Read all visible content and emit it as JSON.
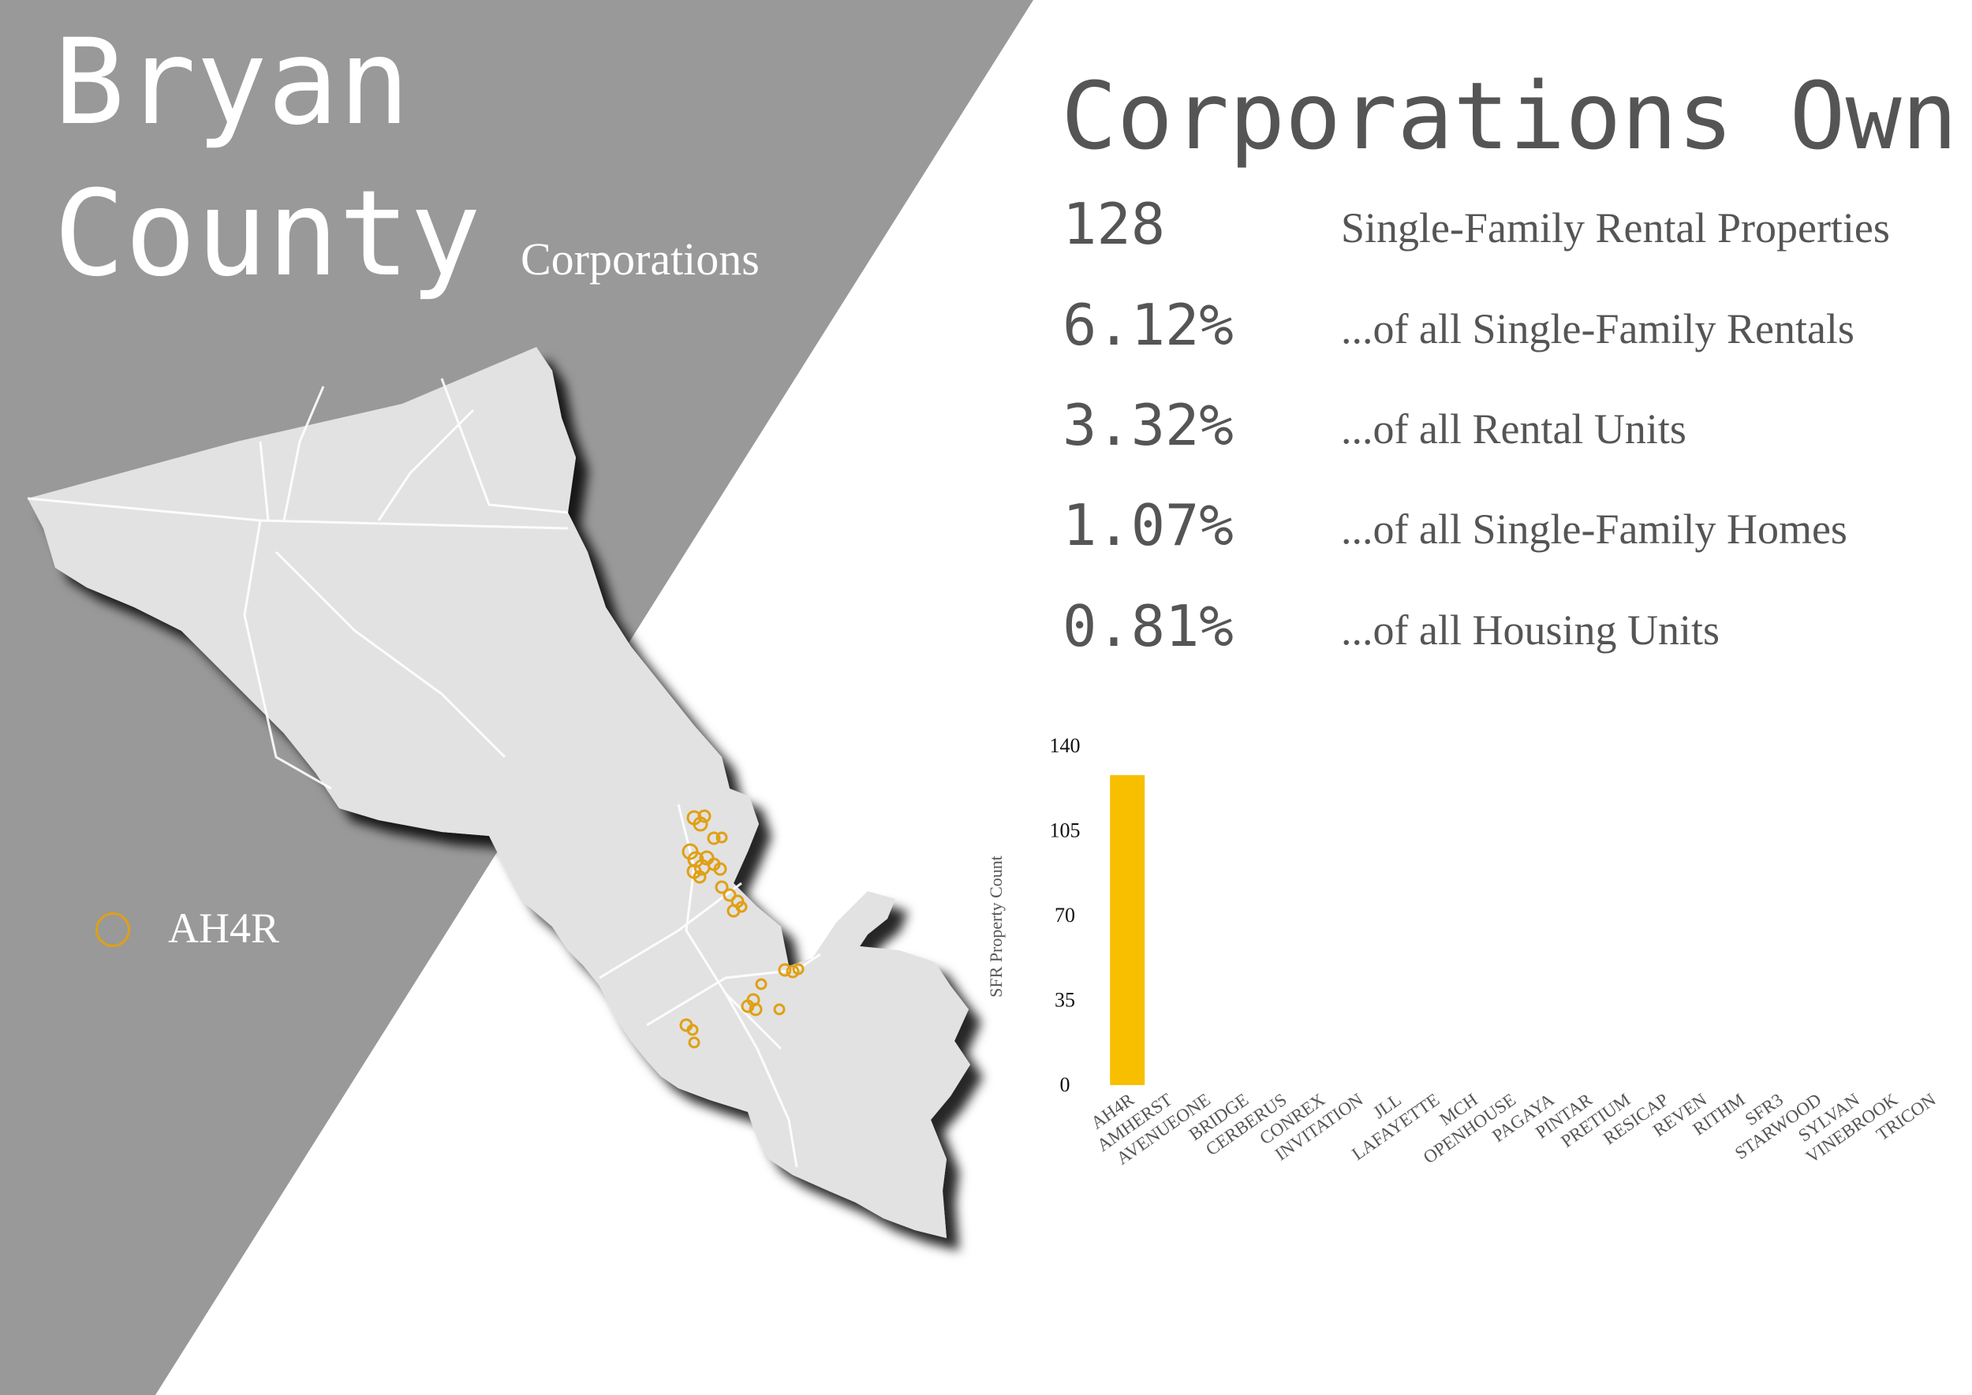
{
  "header": {
    "title_line1": "Bryan",
    "title_line2": "County",
    "subtitle": "Corporations"
  },
  "legend": {
    "label": "AH4R",
    "color": "#e0a015"
  },
  "colors": {
    "panel": "#999999",
    "map_fill": "#e2e2e2",
    "bar": "#f8bf00",
    "text": "#555555"
  },
  "stats": {
    "heading": "Corporations Own:",
    "items": [
      {
        "value": "128",
        "label": "Single-Family Rental Properties"
      },
      {
        "value": "6.12%",
        "label": "...of all Single-Family Rentals"
      },
      {
        "value": "3.32%",
        "label": "...of all Rental Units"
      },
      {
        "value": "1.07%",
        "label": "...of all Single-Family Homes"
      },
      {
        "value": "0.81%",
        "label": "...of all Housing Units"
      }
    ]
  },
  "chart_data": {
    "type": "bar",
    "title": "",
    "xlabel": "",
    "ylabel": "SFR Property Count",
    "ylim": [
      0,
      140
    ],
    "yticks": [
      "0",
      "35",
      "70",
      "105",
      "140"
    ],
    "categories": [
      "AH4R",
      "AMHERST",
      "AVENUEONE",
      "BRIDGE",
      "CERBERUS",
      "CONREX",
      "INVITATION",
      "JLL",
      "LAFAYETTE",
      "MCH",
      "OPENHOUSE",
      "PAGAYA",
      "PINTAR",
      "PRETIUM",
      "RESICAP",
      "REVEN",
      "RITHM",
      "SFR3",
      "STARWOOD",
      "SYLVAN",
      "VINEBROOK",
      "TRICON"
    ],
    "values": [
      128,
      0,
      0,
      0,
      0,
      0,
      0,
      0,
      0,
      0,
      0,
      0,
      0,
      0,
      0,
      0,
      0,
      0,
      0,
      0,
      0,
      0
    ],
    "grid": false,
    "legend": "none"
  }
}
